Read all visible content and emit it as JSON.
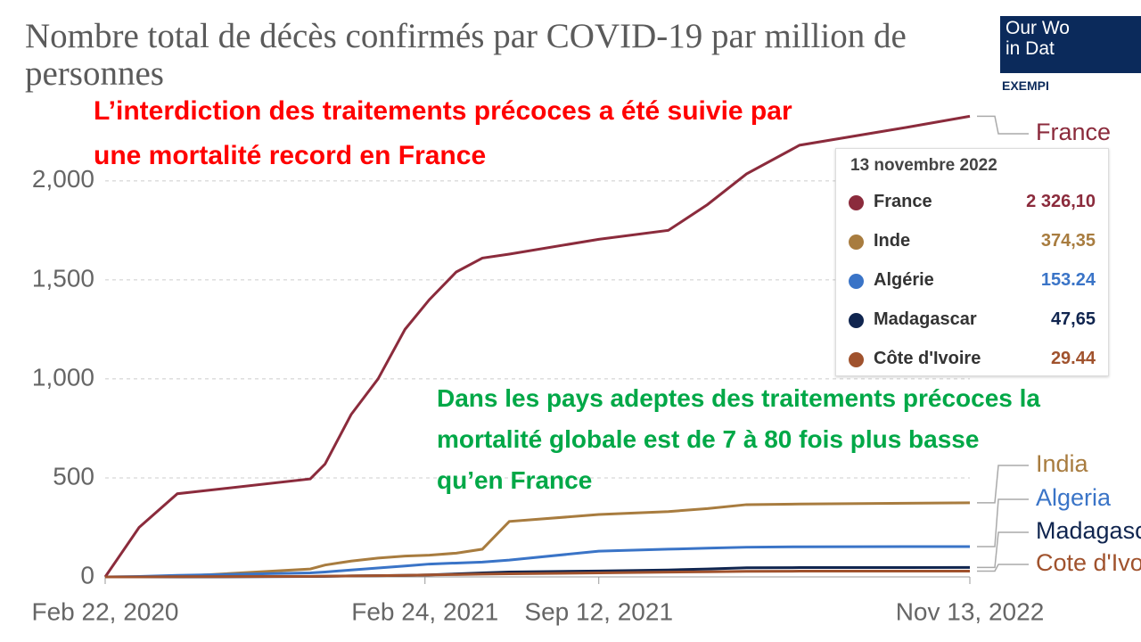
{
  "chart_data": {
    "type": "line",
    "title": "Nombre total de décès confirmés par COVID-19 par million de personnes",
    "x": [
      "2020-02-22",
      "2020-04-01",
      "2020-05-15",
      "2020-10-15",
      "2020-11-01",
      "2020-12-01",
      "2021-01-01",
      "2021-02-01",
      "2021-03-01",
      "2021-04-01",
      "2021-05-01",
      "2021-06-01",
      "2021-09-12",
      "2021-12-01",
      "2022-01-15",
      "2022-03-01",
      "2022-05-01",
      "2022-09-01",
      "2022-11-13"
    ],
    "xlim": [
      "2020-02-22",
      "2022-11-13"
    ],
    "xticks": [
      {
        "value": "2020-02-22",
        "label": "Feb 22, 2020"
      },
      {
        "value": "2021-02-24",
        "label": "Feb 24, 2021"
      },
      {
        "value": "2021-09-12",
        "label": "Sep 12, 2021"
      },
      {
        "value": "2022-11-13",
        "label": "Nov 13, 2022"
      }
    ],
    "ylim": [
      0,
      2400
    ],
    "yticks": [
      0,
      500,
      {
        "value": 1000,
        "label": "1,000"
      },
      {
        "value": 1500,
        "label": "1,500"
      },
      {
        "value": 2000,
        "label": "2,000"
      }
    ],
    "grid": true,
    "series": [
      {
        "name": "France",
        "color": "#8b2b3c",
        "values": [
          0,
          250,
          420,
          495,
          570,
          820,
          1000,
          1250,
          1400,
          1540,
          1610,
          1630,
          1705,
          1750,
          1880,
          2035,
          2180,
          2270,
          2326.1
        ]
      },
      {
        "name": "India",
        "color": "#a87c3f",
        "values": [
          0,
          0,
          2,
          40,
          60,
          80,
          95,
          105,
          110,
          120,
          140,
          280,
          315,
          330,
          345,
          365,
          368,
          372,
          374.35
        ]
      },
      {
        "name": "Algeria",
        "color": "#3a74c7",
        "values": [
          0,
          2,
          8,
          20,
          25,
          35,
          45,
          55,
          65,
          70,
          75,
          85,
          130,
          140,
          145,
          150,
          152,
          153,
          153.24
        ]
      },
      {
        "name": "Madagascar",
        "color": "#10254f",
        "values": [
          0,
          0,
          0,
          2,
          3,
          5,
          6,
          8,
          10,
          15,
          20,
          25,
          30,
          35,
          40,
          46,
          47,
          47.5,
          47.65
        ]
      },
      {
        "name": "Cote d'Ivoire",
        "color": "#a0522d",
        "values": [
          0,
          0,
          1,
          3,
          4,
          5,
          6,
          8,
          10,
          12,
          14,
          16,
          20,
          24,
          26,
          28,
          29,
          29.3,
          29.44
        ]
      }
    ],
    "tooltip": {
      "date": "13 novembre 2022",
      "entries": [
        {
          "name": "France",
          "value_label": "2 326,10"
        },
        {
          "name": "Inde",
          "value_label": "374,35"
        },
        {
          "name": "Algérie",
          "value_label": "153.24"
        },
        {
          "name": "Madagascar",
          "value_label": "47,65"
        },
        {
          "name": "Côte d'Ivoire",
          "value_label": "29.44"
        }
      ]
    },
    "annotations": [
      {
        "text": "L’interdiction des traitements précoces a été suivie par une mortalité record en France",
        "color": "#ff0000"
      },
      {
        "text": "Dans les pays adeptes des traitements précoces la mortalité globale est de 7 à 80 fois plus basse qu’en France",
        "color": "#00a847"
      }
    ]
  },
  "logo": {
    "line1": "Our Wo",
    "line2": "in Dat",
    "badge": "EXEMPI"
  }
}
